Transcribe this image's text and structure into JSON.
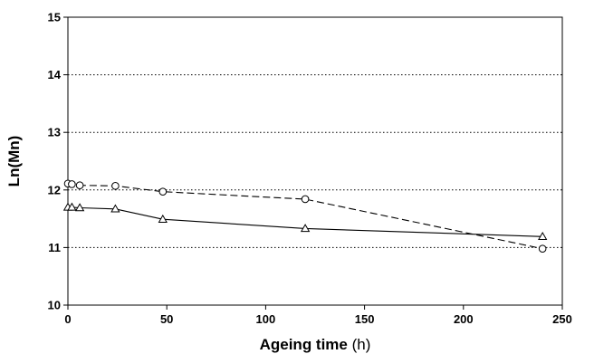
{
  "chart_data": {
    "type": "line",
    "xlabel": "Ageing time",
    "xlabel_unit": "(h)",
    "ylabel": "Ln(Mn)",
    "xlim": [
      0,
      250
    ],
    "ylim": [
      10,
      15
    ],
    "xticks": [
      "0",
      "50",
      "100",
      "150",
      "200",
      "250"
    ],
    "yticks": [
      "10",
      "11",
      "12",
      "13",
      "14",
      "15"
    ],
    "grid": "horizontal dotted",
    "legend": "none",
    "series": [
      {
        "marker": "circle",
        "line_style": "dashed",
        "color": "#000000",
        "x": [
          0,
          2,
          6,
          24,
          48,
          120,
          240
        ],
        "y": [
          12.11,
          12.1,
          12.08,
          12.07,
          11.97,
          11.84,
          10.98
        ]
      },
      {
        "marker": "triangle",
        "line_style": "solid",
        "color": "#000000",
        "x": [
          0,
          2,
          6,
          24,
          48,
          120,
          240
        ],
        "y": [
          11.7,
          11.7,
          11.69,
          11.67,
          11.49,
          11.33,
          11.19
        ]
      }
    ]
  }
}
